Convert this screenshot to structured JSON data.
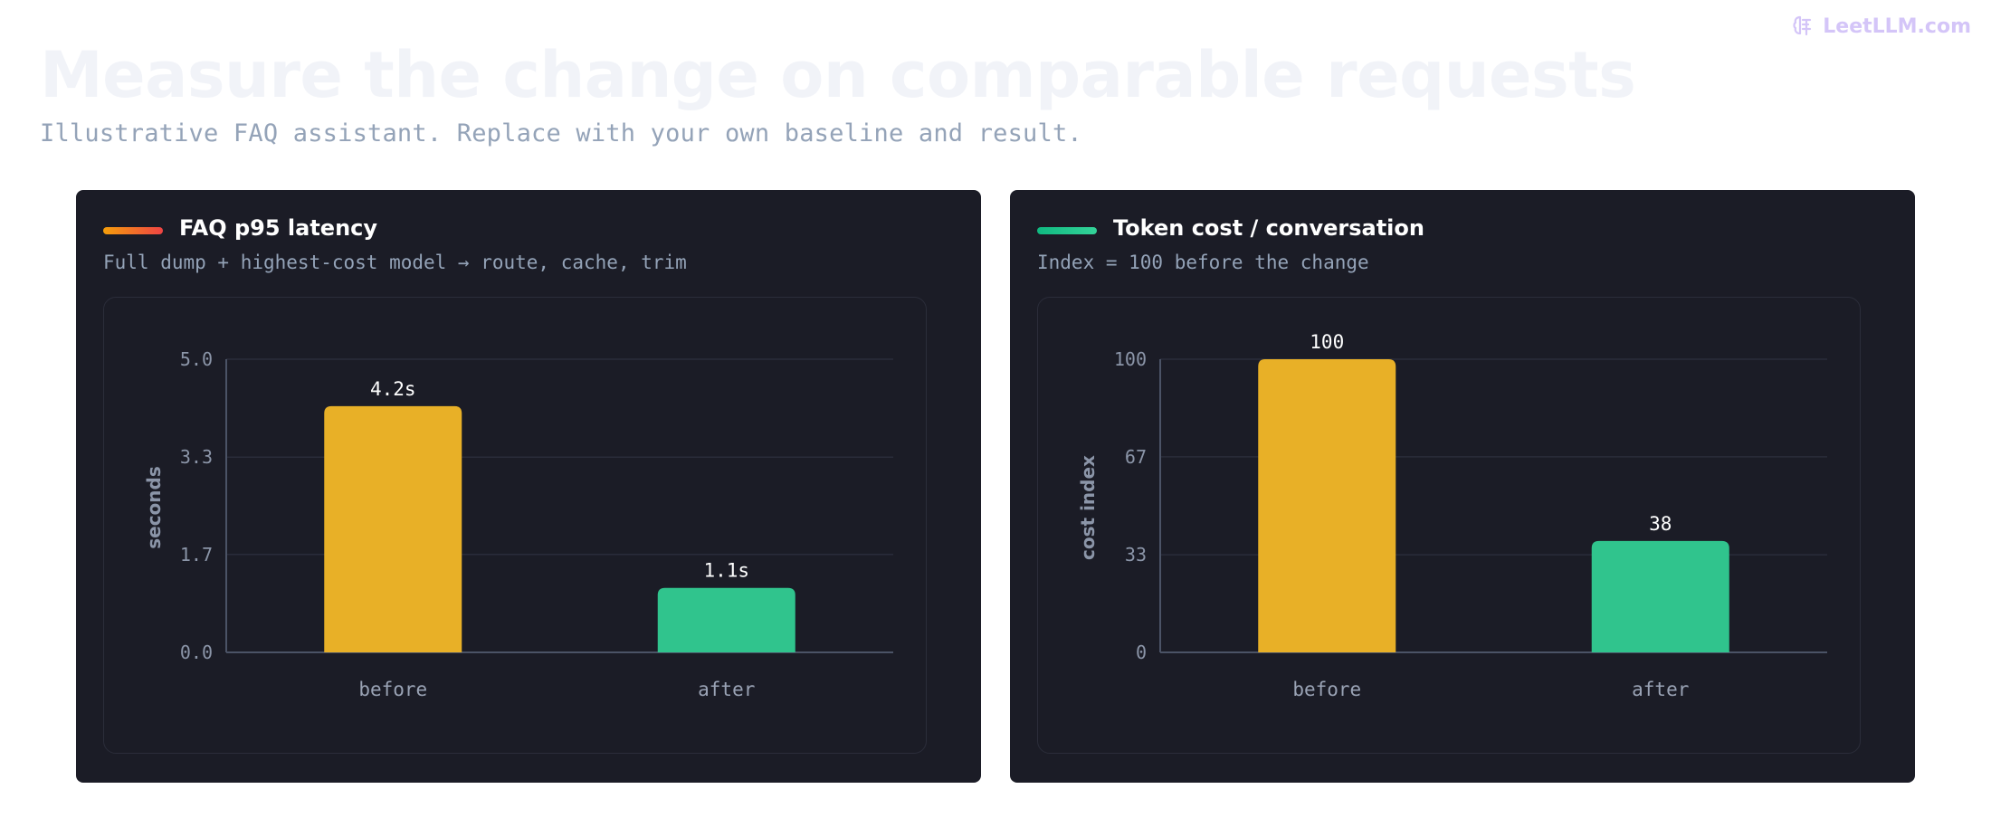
{
  "brand": {
    "name": "LeetLLM.com",
    "color": "#d4c5f8",
    "icon": "brain-logo-icon"
  },
  "page": {
    "title": "Measure the change on comparable requests",
    "subtitle": "Illustrative FAQ assistant. Replace with your own baseline and result."
  },
  "panels": [
    {
      "title": "FAQ p95 latency",
      "subtitle": "Full dump + highest-cost model → route, cache, trim",
      "accent_colors": [
        "#f59e0b",
        "#ef4444"
      ]
    },
    {
      "title": "Token cost / conversation",
      "subtitle": "Index = 100 before the change",
      "accent_colors": [
        "#10b981",
        "#34d399"
      ]
    }
  ],
  "chart_data": [
    {
      "type": "bar",
      "categories": [
        "before",
        "after"
      ],
      "values": [
        4.2,
        1.1
      ],
      "value_labels": [
        "4.2s",
        "1.1s"
      ],
      "colors": [
        "#e8b027",
        "#30c48d"
      ],
      "ylabel": "seconds",
      "ylim": [
        0,
        5
      ],
      "yticks": [
        0,
        1.67,
        3.33,
        5
      ],
      "ytick_labels": [
        "0.0",
        "1.7",
        "3.3",
        "5.0"
      ],
      "grid": true
    },
    {
      "type": "bar",
      "categories": [
        "before",
        "after"
      ],
      "values": [
        100,
        38
      ],
      "value_labels": [
        "100",
        "38"
      ],
      "colors": [
        "#e8b027",
        "#30c48d"
      ],
      "ylabel": "cost index",
      "ylim": [
        0,
        100
      ],
      "yticks": [
        0,
        33.3,
        66.7,
        100
      ],
      "ytick_labels": [
        "0",
        "33",
        "67",
        "100"
      ],
      "grid": true
    }
  ]
}
